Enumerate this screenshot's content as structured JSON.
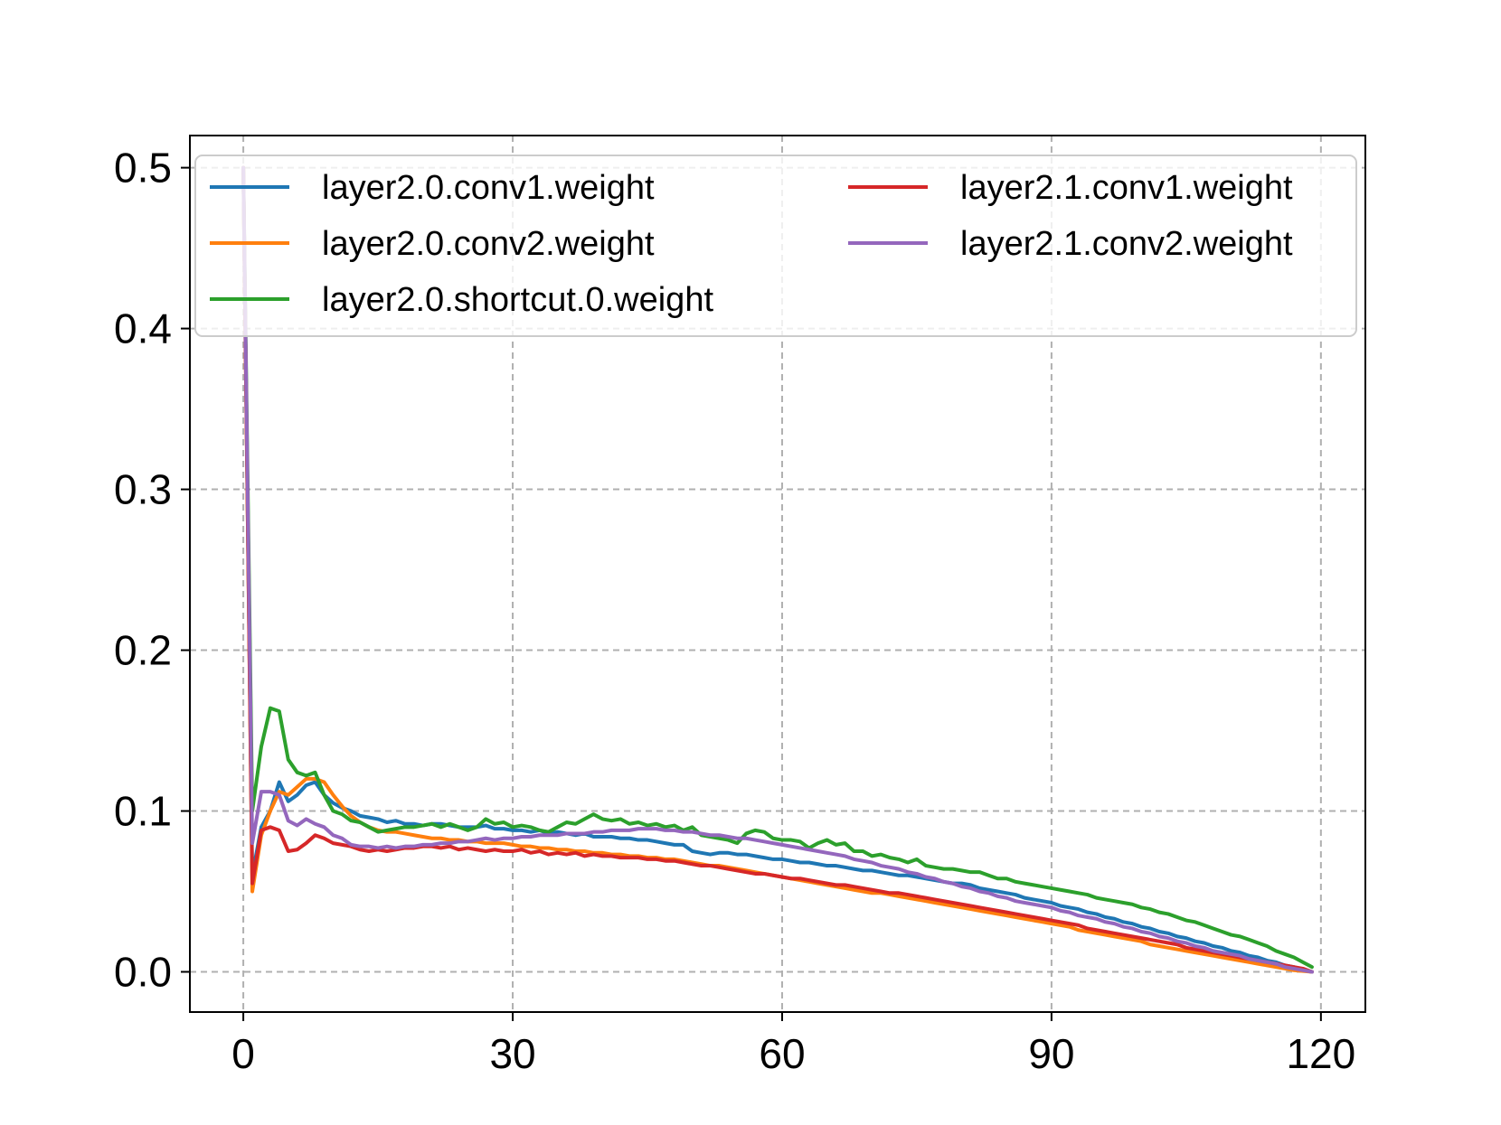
{
  "chart_data": {
    "type": "line",
    "title": "",
    "xlabel": "",
    "ylabel": "",
    "xlim": [
      -5.95,
      124.95
    ],
    "ylim": [
      -0.025,
      0.52
    ],
    "x_ticks": [
      0,
      30,
      60,
      90,
      120
    ],
    "y_ticks": [
      0.0,
      0.1,
      0.2,
      0.3,
      0.4,
      0.5
    ],
    "x_tick_labels": [
      "0",
      "30",
      "60",
      "90",
      "120"
    ],
    "y_tick_labels": [
      "0.0",
      "0.1",
      "0.2",
      "0.3",
      "0.4",
      "0.5"
    ],
    "grid": true,
    "legend_position": "upper",
    "legend_columns": 2,
    "x": [
      0,
      1,
      2,
      3,
      4,
      5,
      6,
      7,
      8,
      9,
      10,
      11,
      12,
      13,
      14,
      15,
      16,
      17,
      18,
      19,
      20,
      21,
      22,
      23,
      24,
      25,
      26,
      27,
      28,
      29,
      30,
      31,
      32,
      33,
      34,
      35,
      36,
      37,
      38,
      39,
      40,
      41,
      42,
      43,
      44,
      45,
      46,
      47,
      48,
      49,
      50,
      51,
      52,
      53,
      54,
      55,
      56,
      57,
      58,
      59,
      60,
      61,
      62,
      63,
      64,
      65,
      66,
      67,
      68,
      69,
      70,
      71,
      72,
      73,
      74,
      75,
      76,
      77,
      78,
      79,
      80,
      81,
      82,
      83,
      84,
      85,
      86,
      87,
      88,
      89,
      90,
      91,
      92,
      93,
      94,
      95,
      96,
      97,
      98,
      99,
      100,
      101,
      102,
      103,
      104,
      105,
      106,
      107,
      108,
      109,
      110,
      111,
      112,
      113,
      114,
      115,
      116,
      117,
      118,
      119
    ],
    "series": [
      {
        "name": "layer2.0.conv1.weight",
        "color": "#1f77b4",
        "values": [
          0.5,
          0.06,
          0.09,
          0.1,
          0.118,
          0.106,
          0.11,
          0.116,
          0.118,
          0.11,
          0.105,
          0.102,
          0.1,
          0.097,
          0.096,
          0.095,
          0.093,
          0.094,
          0.092,
          0.092,
          0.091,
          0.092,
          0.092,
          0.091,
          0.09,
          0.09,
          0.09,
          0.091,
          0.089,
          0.089,
          0.088,
          0.088,
          0.087,
          0.088,
          0.086,
          0.087,
          0.086,
          0.085,
          0.086,
          0.084,
          0.084,
          0.084,
          0.083,
          0.083,
          0.082,
          0.082,
          0.081,
          0.08,
          0.079,
          0.079,
          0.075,
          0.074,
          0.073,
          0.074,
          0.074,
          0.073,
          0.073,
          0.072,
          0.071,
          0.07,
          0.07,
          0.069,
          0.068,
          0.068,
          0.067,
          0.066,
          0.066,
          0.065,
          0.064,
          0.063,
          0.063,
          0.062,
          0.061,
          0.06,
          0.06,
          0.059,
          0.058,
          0.057,
          0.056,
          0.055,
          0.055,
          0.054,
          0.052,
          0.051,
          0.05,
          0.049,
          0.048,
          0.046,
          0.045,
          0.044,
          0.043,
          0.041,
          0.04,
          0.039,
          0.037,
          0.036,
          0.034,
          0.033,
          0.031,
          0.03,
          0.028,
          0.027,
          0.025,
          0.024,
          0.022,
          0.021,
          0.019,
          0.018,
          0.016,
          0.015,
          0.013,
          0.012,
          0.01,
          0.009,
          0.007,
          0.006,
          0.004,
          0.003,
          0.001,
          0.0
        ]
      },
      {
        "name": "layer2.0.conv2.weight",
        "color": "#ff7f0e",
        "values": [
          0.5,
          0.05,
          0.085,
          0.1,
          0.112,
          0.11,
          0.115,
          0.12,
          0.12,
          0.118,
          0.11,
          0.103,
          0.097,
          0.093,
          0.09,
          0.088,
          0.087,
          0.087,
          0.086,
          0.085,
          0.084,
          0.083,
          0.083,
          0.082,
          0.082,
          0.081,
          0.081,
          0.08,
          0.08,
          0.08,
          0.079,
          0.078,
          0.078,
          0.077,
          0.077,
          0.076,
          0.076,
          0.075,
          0.075,
          0.074,
          0.074,
          0.073,
          0.073,
          0.072,
          0.072,
          0.071,
          0.071,
          0.07,
          0.07,
          0.069,
          0.068,
          0.067,
          0.066,
          0.066,
          0.065,
          0.064,
          0.063,
          0.062,
          0.061,
          0.06,
          0.059,
          0.058,
          0.057,
          0.056,
          0.055,
          0.054,
          0.053,
          0.052,
          0.051,
          0.05,
          0.049,
          0.049,
          0.048,
          0.047,
          0.046,
          0.045,
          0.044,
          0.043,
          0.042,
          0.041,
          0.04,
          0.039,
          0.038,
          0.037,
          0.036,
          0.035,
          0.034,
          0.033,
          0.032,
          0.031,
          0.03,
          0.029,
          0.028,
          0.026,
          0.025,
          0.024,
          0.023,
          0.022,
          0.021,
          0.02,
          0.019,
          0.017,
          0.016,
          0.015,
          0.014,
          0.013,
          0.012,
          0.011,
          0.01,
          0.009,
          0.008,
          0.007,
          0.006,
          0.005,
          0.004,
          0.003,
          0.002,
          0.001,
          0.0005,
          0.0
        ]
      },
      {
        "name": "layer2.0.shortcut.0.weight",
        "color": "#2ca02c",
        "values": [
          0.5,
          0.1,
          0.14,
          0.164,
          0.162,
          0.132,
          0.124,
          0.122,
          0.124,
          0.11,
          0.1,
          0.098,
          0.094,
          0.093,
          0.09,
          0.087,
          0.088,
          0.089,
          0.09,
          0.09,
          0.091,
          0.092,
          0.09,
          0.092,
          0.09,
          0.088,
          0.09,
          0.095,
          0.092,
          0.093,
          0.09,
          0.091,
          0.09,
          0.088,
          0.087,
          0.09,
          0.093,
          0.092,
          0.095,
          0.098,
          0.095,
          0.094,
          0.095,
          0.092,
          0.093,
          0.091,
          0.092,
          0.09,
          0.091,
          0.088,
          0.09,
          0.085,
          0.084,
          0.083,
          0.082,
          0.08,
          0.086,
          0.088,
          0.087,
          0.083,
          0.082,
          0.082,
          0.081,
          0.077,
          0.08,
          0.082,
          0.079,
          0.08,
          0.075,
          0.075,
          0.072,
          0.073,
          0.071,
          0.07,
          0.068,
          0.07,
          0.066,
          0.065,
          0.064,
          0.064,
          0.063,
          0.062,
          0.062,
          0.06,
          0.058,
          0.058,
          0.056,
          0.055,
          0.054,
          0.053,
          0.052,
          0.051,
          0.05,
          0.049,
          0.048,
          0.046,
          0.045,
          0.044,
          0.043,
          0.042,
          0.04,
          0.039,
          0.037,
          0.036,
          0.034,
          0.032,
          0.031,
          0.029,
          0.027,
          0.025,
          0.023,
          0.022,
          0.02,
          0.018,
          0.016,
          0.013,
          0.011,
          0.009,
          0.006,
          0.003
        ]
      },
      {
        "name": "layer2.1.conv1.weight",
        "color": "#d62728",
        "values": [
          0.5,
          0.055,
          0.088,
          0.09,
          0.088,
          0.075,
          0.076,
          0.08,
          0.085,
          0.083,
          0.08,
          0.079,
          0.078,
          0.076,
          0.075,
          0.076,
          0.075,
          0.076,
          0.077,
          0.077,
          0.078,
          0.078,
          0.077,
          0.078,
          0.076,
          0.077,
          0.076,
          0.075,
          0.076,
          0.075,
          0.075,
          0.076,
          0.074,
          0.075,
          0.073,
          0.074,
          0.073,
          0.074,
          0.072,
          0.073,
          0.072,
          0.072,
          0.071,
          0.071,
          0.071,
          0.07,
          0.07,
          0.069,
          0.069,
          0.068,
          0.067,
          0.066,
          0.066,
          0.065,
          0.064,
          0.063,
          0.062,
          0.061,
          0.061,
          0.06,
          0.059,
          0.058,
          0.058,
          0.057,
          0.056,
          0.055,
          0.054,
          0.054,
          0.053,
          0.052,
          0.051,
          0.05,
          0.049,
          0.049,
          0.048,
          0.047,
          0.046,
          0.045,
          0.044,
          0.043,
          0.042,
          0.041,
          0.04,
          0.039,
          0.038,
          0.037,
          0.036,
          0.035,
          0.034,
          0.033,
          0.032,
          0.031,
          0.03,
          0.029,
          0.027,
          0.026,
          0.025,
          0.024,
          0.023,
          0.022,
          0.021,
          0.02,
          0.019,
          0.018,
          0.017,
          0.015,
          0.014,
          0.013,
          0.012,
          0.011,
          0.01,
          0.009,
          0.008,
          0.007,
          0.006,
          0.005,
          0.004,
          0.003,
          0.002,
          0.0
        ]
      },
      {
        "name": "layer2.1.conv2.weight",
        "color": "#9467bd",
        "values": [
          0.5,
          0.08,
          0.112,
          0.112,
          0.11,
          0.094,
          0.091,
          0.095,
          0.092,
          0.09,
          0.085,
          0.083,
          0.079,
          0.078,
          0.078,
          0.077,
          0.078,
          0.077,
          0.078,
          0.078,
          0.079,
          0.079,
          0.08,
          0.08,
          0.081,
          0.081,
          0.082,
          0.083,
          0.082,
          0.083,
          0.083,
          0.084,
          0.084,
          0.085,
          0.085,
          0.085,
          0.086,
          0.086,
          0.086,
          0.087,
          0.087,
          0.088,
          0.088,
          0.088,
          0.089,
          0.089,
          0.089,
          0.088,
          0.088,
          0.087,
          0.087,
          0.086,
          0.085,
          0.085,
          0.084,
          0.083,
          0.083,
          0.082,
          0.081,
          0.08,
          0.079,
          0.078,
          0.077,
          0.076,
          0.075,
          0.074,
          0.073,
          0.072,
          0.07,
          0.069,
          0.068,
          0.066,
          0.065,
          0.064,
          0.062,
          0.061,
          0.059,
          0.058,
          0.056,
          0.055,
          0.053,
          0.052,
          0.05,
          0.049,
          0.047,
          0.046,
          0.044,
          0.043,
          0.042,
          0.041,
          0.04,
          0.038,
          0.037,
          0.035,
          0.034,
          0.033,
          0.031,
          0.03,
          0.028,
          0.027,
          0.025,
          0.024,
          0.022,
          0.021,
          0.019,
          0.018,
          0.016,
          0.015,
          0.013,
          0.012,
          0.011,
          0.01,
          0.008,
          0.007,
          0.006,
          0.005,
          0.003,
          0.002,
          0.001,
          0.0
        ]
      }
    ]
  }
}
